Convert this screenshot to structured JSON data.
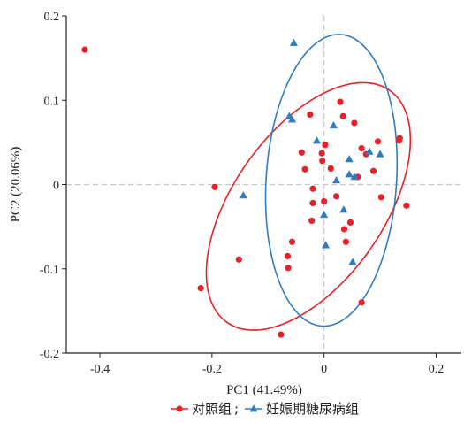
{
  "chart_data": {
    "type": "scatter",
    "xlabel": "PC1 (41.49%)",
    "ylabel": "PC2 (20.06%)",
    "xlim": [
      -0.46,
      0.245
    ],
    "ylim": [
      -0.2,
      0.2
    ],
    "x_ticks": [
      {
        "value": -0.4,
        "label": "-0.4"
      },
      {
        "value": -0.2,
        "label": "-0.2"
      },
      {
        "value": 0,
        "label": "0"
      },
      {
        "value": 0.2,
        "label": "0.2"
      }
    ],
    "y_ticks": [
      {
        "value": -0.2,
        "label": "-0.2"
      },
      {
        "value": -0.1,
        "label": "-0.1"
      },
      {
        "value": 0,
        "label": "0"
      },
      {
        "value": 0.1,
        "label": "0.1"
      },
      {
        "value": 0.2,
        "label": "0.2"
      }
    ],
    "zero_lines": true,
    "legend_position": "bottom",
    "series": [
      {
        "name": "对照组",
        "separator": ";",
        "marker": "circle",
        "color": "#e8202a",
        "points": [
          [
            -0.427,
            0.16
          ],
          [
            -0.195,
            -0.003
          ],
          [
            -0.22,
            -0.123
          ],
          [
            -0.152,
            -0.089
          ],
          [
            -0.077,
            -0.178
          ],
          [
            -0.065,
            -0.085
          ],
          [
            -0.064,
            -0.099
          ],
          [
            -0.057,
            -0.068
          ],
          [
            -0.022,
            -0.043
          ],
          [
            -0.04,
            0.038
          ],
          [
            -0.034,
            0.018
          ],
          [
            -0.025,
            0.083
          ],
          [
            -0.02,
            -0.005
          ],
          [
            -0.02,
            -0.022
          ],
          [
            -0.004,
            0.037
          ],
          [
            0.0,
            -0.02
          ],
          [
            0.002,
            0.047
          ],
          [
            0.012,
            0.019
          ],
          [
            0.022,
            -0.014
          ],
          [
            0.029,
            0.098
          ],
          [
            0.034,
            0.081
          ],
          [
            0.036,
            -0.053
          ],
          [
            0.039,
            -0.068
          ],
          [
            0.047,
            -0.045
          ],
          [
            0.054,
            0.073
          ],
          [
            0.06,
            0.009
          ],
          [
            0.067,
            0.043
          ],
          [
            0.067,
            -0.14
          ],
          [
            0.075,
            0.036
          ],
          [
            0.088,
            0.016
          ],
          [
            0.096,
            0.051
          ],
          [
            0.102,
            -0.015
          ],
          [
            0.134,
            0.052
          ],
          [
            0.135,
            0.055
          ],
          [
            0.147,
            -0.025
          ],
          [
            -0.003,
            0.028
          ]
        ],
        "ellipse": {
          "center": [
            -0.028,
            -0.026
          ],
          "semi_axes": [
            0.207,
            0.109
          ],
          "angle_deg": 34
        }
      },
      {
        "name": "妊娠期糖尿病组",
        "marker": "triangle",
        "color": "#2f7bc4",
        "points": [
          [
            -0.054,
            0.168
          ],
          [
            -0.062,
            0.081
          ],
          [
            -0.057,
            0.077
          ],
          [
            -0.013,
            0.052
          ],
          [
            0.017,
            0.07
          ],
          [
            -0.144,
            -0.013
          ],
          [
            0.0,
            -0.036
          ],
          [
            0.003,
            -0.072
          ],
          [
            0.035,
            -0.03
          ],
          [
            0.045,
            0.03
          ],
          [
            0.045,
            0.012
          ],
          [
            0.054,
            0.009
          ],
          [
            0.051,
            -0.092
          ],
          [
            0.081,
            0.039
          ],
          [
            0.1,
            0.036
          ],
          [
            0.022,
            0.005
          ]
        ],
        "ellipse": {
          "center": [
            0.013,
            0.005
          ],
          "semi_axes": [
            0.174,
            0.116
          ],
          "angle_deg": 82
        }
      }
    ]
  }
}
